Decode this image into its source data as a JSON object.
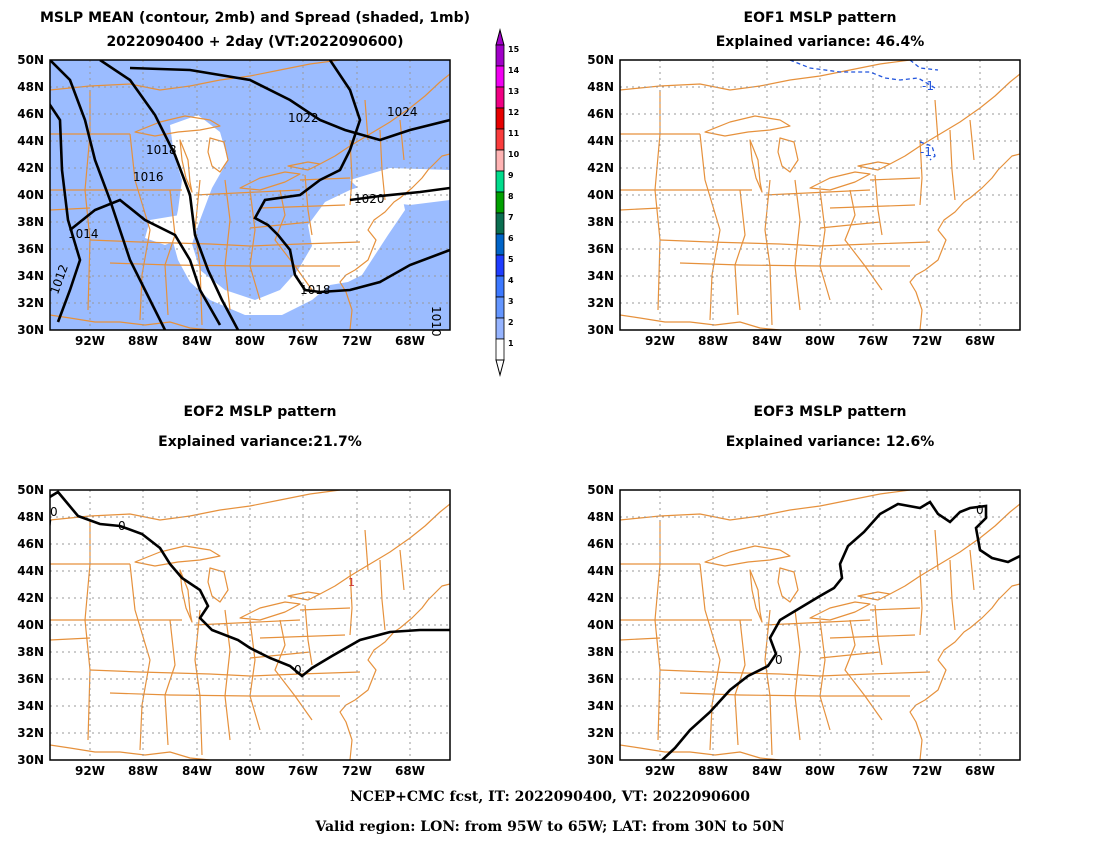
{
  "panels": [
    {
      "title1": "MSLP MEAN (contour, 2mb) and Spread (shaded, 1mb)",
      "title2": "2022090400 + 2day (VT:2022090600)",
      "contour_labels": [
        "1022",
        "1024",
        "1018",
        "1016",
        "1020",
        "1014",
        "1018",
        "1012",
        "1010"
      ]
    },
    {
      "title1": "EOF1 MSLP pattern",
      "title2": "Explained variance: 46.4%",
      "contour_labels": [
        "-1",
        "-1"
      ]
    },
    {
      "title1": "EOF2 MSLP pattern",
      "title2": "Explained variance:21.7%",
      "contour_labels": [
        "0",
        "0",
        "0",
        "1"
      ]
    },
    {
      "title1": "EOF3 MSLP pattern",
      "title2": "Explained variance: 12.6%",
      "contour_labels": [
        "0",
        "0"
      ]
    }
  ],
  "axes": {
    "lat_labels": [
      "50N",
      "48N",
      "46N",
      "44N",
      "42N",
      "40N",
      "38N",
      "36N",
      "34N",
      "32N",
      "30N"
    ],
    "lon_labels": [
      "92W",
      "88W",
      "84W",
      "80W",
      "76W",
      "72W",
      "68W"
    ]
  },
  "colorbar": {
    "labels": [
      "15",
      "14",
      "13",
      "12",
      "11",
      "10",
      "9",
      "8",
      "7",
      "6",
      "5",
      "4",
      "3",
      "2",
      "1"
    ],
    "colors": [
      "#a000c8",
      "#f000f0",
      "#f00082",
      "#e60000",
      "#fa3c3c",
      "#ffb4b4",
      "#00dc8c",
      "#00a000",
      "#0a6e50",
      "#0064c8",
      "#1e3cff",
      "#3c78ff",
      "#6496ff",
      "#96b4ff",
      "#ffffff"
    ]
  },
  "colors": {
    "map_lines": "#e6913c",
    "spread_shade": "#9bbcff",
    "negative_contour": "#2255dd"
  },
  "footer": {
    "line1": "NCEP+CMC fcst, IT: 2022090400, VT: 2022090600",
    "line2": "Valid region: LON: from 95W to 65W; LAT: from 30N to 50N"
  }
}
